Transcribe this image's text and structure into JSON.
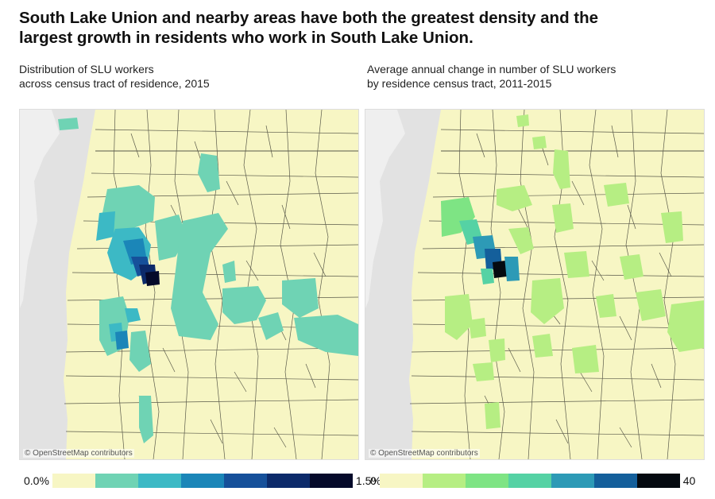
{
  "title": {
    "line1": "South Lake Union and nearby areas have both the greatest density and the",
    "line2": "largest growth in residents who work in South Lake Union."
  },
  "left_panel": {
    "subtitle_line1": "Distribution of SLU workers",
    "subtitle_line2": "across census tract of residence, 2015",
    "credit": "© OpenStreetMap contributors",
    "legend": {
      "min_label": "0.0%",
      "max_label": "1.5%",
      "colors": [
        "#f7f6c4",
        "#6fd3b4",
        "#3cb9c5",
        "#1b86b8",
        "#16509a",
        "#0c2a6a",
        "#050a2a"
      ]
    }
  },
  "right_panel": {
    "subtitle_line1": "Average annual change in number of SLU workers",
    "subtitle_line2": "by residence census tract, 2011-2015",
    "credit": "© OpenStreetMap contributors",
    "legend": {
      "min_label": "0",
      "max_label": "40",
      "colors": [
        "#f7f6c4",
        "#b6ee83",
        "#7ee484",
        "#55d2a4",
        "#2d9ab6",
        "#145f9b",
        "#050a10"
      ]
    }
  },
  "map_colors": {
    "land": "#f7f6c4",
    "water": "#dcdcdc",
    "boundary": "#5a5a4a"
  }
}
